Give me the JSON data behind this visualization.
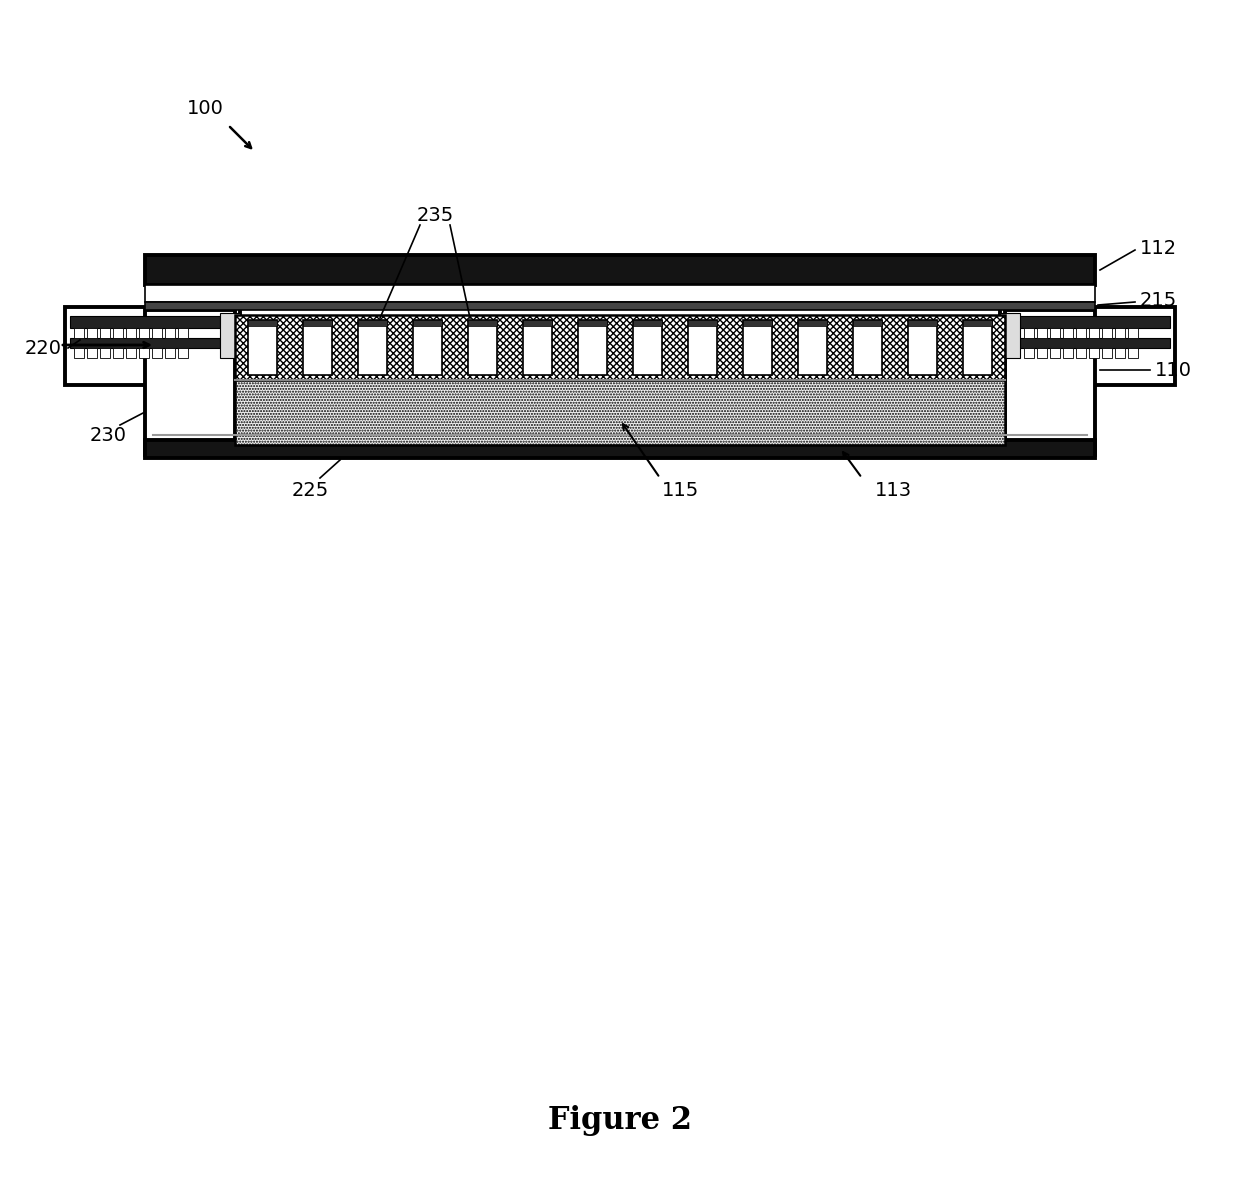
{
  "bg_color": "#ffffff",
  "fig_label": "Figure 2",
  "fig_label_fontsize": 22,
  "fig_label_bold": true,
  "label_fontsize": 13,
  "black": "#000000",
  "dark": "#1a1a1a",
  "mid_gray": "#777777",
  "light_gray": "#bbbbbb",
  "ref_100": "100",
  "ref_112": "112",
  "ref_215": "215",
  "ref_110": "110",
  "ref_220": "220",
  "ref_230": "230",
  "ref_225": "225",
  "ref_235": "235",
  "ref_115": "115",
  "ref_113": "113"
}
